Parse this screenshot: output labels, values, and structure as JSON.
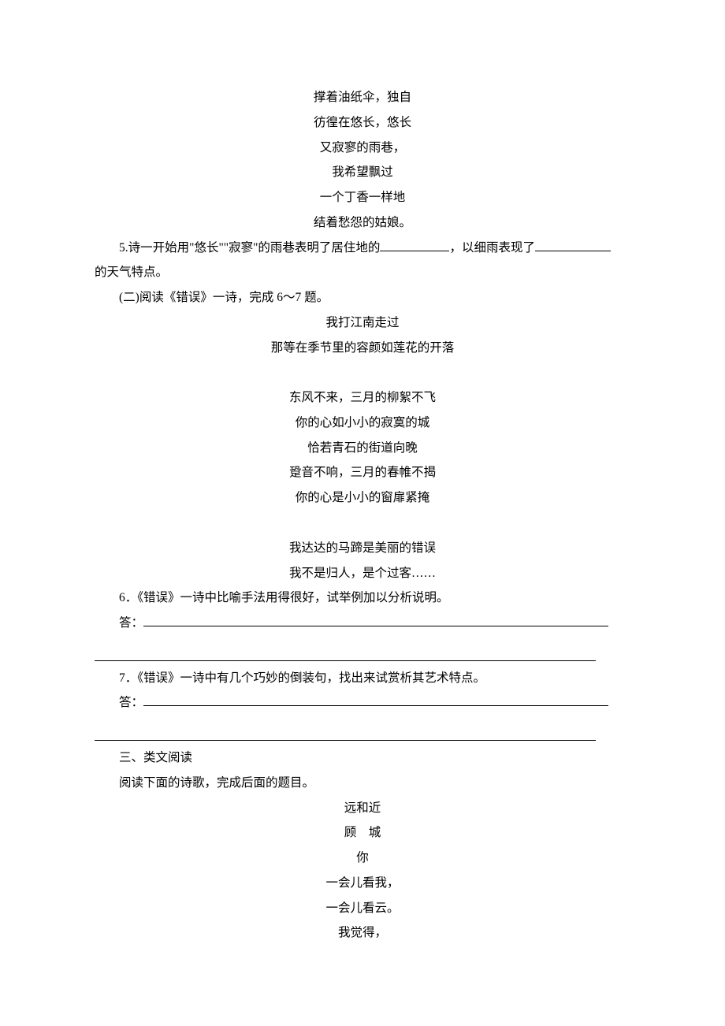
{
  "poem1": {
    "lines": [
      "撑着油纸伞，独自",
      "彷徨在悠长，悠长",
      "又寂寥的雨巷，",
      "我希望飘过",
      "一个丁香一样地",
      "结着愁怨的姑娘。"
    ]
  },
  "q5": {
    "number": "5.",
    "text_a": "诗一开始用\"悠长\"\"寂寥\"的雨巷表明了居住地的",
    "text_b": "，以细雨表现了",
    "text_c": "的天气特点。"
  },
  "section2_intro": "(二)阅读《错误》一诗，完成 6～7 题。",
  "poem2": {
    "stanza1": [
      "我打江南走过",
      "那等在季节里的容颜如莲花的开落"
    ],
    "stanza2": [
      "东风不来，三月的柳絮不飞",
      "你的心如小小的寂寞的城",
      "恰若青石的街道向晚",
      "跫音不响，三月的春帷不揭",
      "你的心是小小的窗扉紧掩"
    ],
    "stanza3": [
      "我达达的马蹄是美丽的错误",
      "我不是归人，是个过客……"
    ]
  },
  "q6": {
    "number": "6．",
    "text": "《错误》一诗中比喻手法用得很好，试举例加以分析说明。",
    "answer_label": "答："
  },
  "q7": {
    "number": "7．",
    "text": "《错误》一诗中有几个巧妙的倒装句，找出来试赏析其艺术特点。",
    "answer_label": "答："
  },
  "section3": {
    "heading": "三、类文阅读",
    "intro": "阅读下面的诗歌，完成后面的题目。"
  },
  "poem3": {
    "title": "远和近",
    "author": "顾　城",
    "lines": [
      "你",
      "一会儿看我，",
      "一会儿看云。",
      "我觉得，"
    ]
  }
}
